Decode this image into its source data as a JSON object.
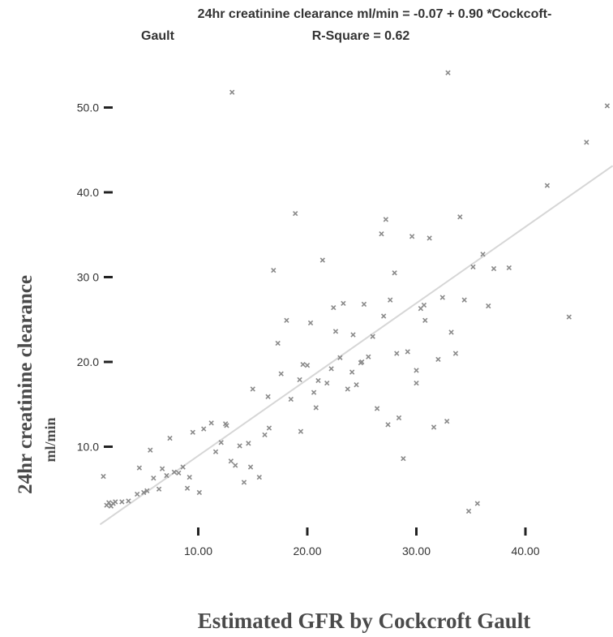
{
  "chart_data": {
    "type": "scatter",
    "title_line1": "24hr creatinine clearance ml/min = -0.07 + 0.90 *Cockcoft-",
    "title_line2_left": "Gault",
    "title_line2_right": "R-Square = 0.62",
    "xlabel": "Estimated GFR by Cockcroft Gault",
    "ylabel": "24hr creatinine clearance",
    "ylabel_unit": "ml/min",
    "xlim": [
      0,
      48
    ],
    "ylim": [
      0,
      56
    ],
    "x_ticks": [
      10,
      20,
      30,
      40
    ],
    "x_tick_labels": [
      "10.00",
      "20.00",
      "30.00",
      "40.00"
    ],
    "y_ticks": [
      10,
      20,
      30,
      40,
      50
    ],
    "y_tick_labels": [
      "10.0",
      "20.0",
      "30 0",
      "40.0",
      "50.0"
    ],
    "fit_line": {
      "intercept": -0.07,
      "slope": 0.9,
      "x_range": [
        1,
        48
      ]
    },
    "points": [
      [
        1.3,
        6.5
      ],
      [
        1.6,
        3.1
      ],
      [
        1.8,
        3.4
      ],
      [
        2.0,
        3.0
      ],
      [
        2.2,
        3.3
      ],
      [
        2.4,
        3.5
      ],
      [
        3.6,
        3.6
      ],
      [
        4.4,
        4.4
      ],
      [
        4.6,
        7.5
      ],
      [
        5.0,
        4.6
      ],
      [
        5.3,
        4.8
      ],
      [
        5.6,
        9.6
      ],
      [
        5.9,
        6.3
      ],
      [
        6.4,
        5.0
      ],
      [
        6.7,
        7.4
      ],
      [
        7.1,
        6.6
      ],
      [
        7.4,
        11.0
      ],
      [
        7.8,
        7.0
      ],
      [
        8.2,
        6.9
      ],
      [
        8.6,
        7.6
      ],
      [
        9.2,
        6.4
      ],
      [
        9.5,
        11.7
      ],
      [
        10.1,
        4.6
      ],
      [
        10.5,
        12.1
      ],
      [
        11.2,
        12.8
      ],
      [
        11.6,
        9.4
      ],
      [
        12.1,
        10.5
      ],
      [
        12.5,
        12.7
      ],
      [
        13.0,
        8.3
      ],
      [
        13.4,
        7.8
      ],
      [
        13.8,
        10.1
      ],
      [
        14.2,
        5.8
      ],
      [
        14.6,
        10.4
      ],
      [
        15.0,
        16.8
      ],
      [
        15.6,
        6.4
      ],
      [
        16.1,
        11.4
      ],
      [
        16.5,
        12.2
      ],
      [
        16.9,
        30.8
      ],
      [
        17.3,
        22.2
      ],
      [
        17.6,
        18.6
      ],
      [
        18.1,
        24.9
      ],
      [
        18.5,
        15.6
      ],
      [
        18.9,
        37.5
      ],
      [
        19.3,
        17.9
      ],
      [
        19.6,
        19.7
      ],
      [
        20.0,
        19.6
      ],
      [
        20.3,
        24.6
      ],
      [
        20.6,
        16.4
      ],
      [
        21.0,
        17.8
      ],
      [
        21.4,
        32.0
      ],
      [
        21.8,
        17.5
      ],
      [
        22.2,
        19.2
      ],
      [
        22.6,
        23.6
      ],
      [
        23.0,
        20.5
      ],
      [
        23.3,
        26.9
      ],
      [
        23.7,
        16.8
      ],
      [
        24.1,
        18.8
      ],
      [
        24.5,
        17.3
      ],
      [
        24.9,
        19.9
      ],
      [
        25.2,
        26.8
      ],
      [
        25.6,
        20.6
      ],
      [
        26.0,
        23.0
      ],
      [
        26.4,
        14.5
      ],
      [
        26.8,
        35.1
      ],
      [
        27.2,
        36.8
      ],
      [
        27.6,
        27.3
      ],
      [
        28.0,
        30.5
      ],
      [
        28.4,
        13.4
      ],
      [
        28.8,
        8.6
      ],
      [
        29.2,
        21.2
      ],
      [
        29.6,
        34.8
      ],
      [
        30.0,
        19.0
      ],
      [
        30.4,
        26.3
      ],
      [
        30.8,
        24.9
      ],
      [
        31.2,
        34.6
      ],
      [
        31.6,
        12.3
      ],
      [
        32.0,
        20.3
      ],
      [
        32.4,
        27.6
      ],
      [
        32.8,
        13.0
      ],
      [
        33.2,
        23.5
      ],
      [
        33.6,
        21.0
      ],
      [
        34.0,
        37.1
      ],
      [
        34.4,
        27.3
      ],
      [
        34.8,
        2.4
      ],
      [
        35.2,
        31.2
      ],
      [
        35.6,
        3.3
      ],
      [
        36.1,
        32.7
      ],
      [
        36.6,
        26.6
      ],
      [
        37.1,
        31.0
      ],
      [
        38.5,
        31.1
      ],
      [
        27.4,
        12.6
      ],
      [
        30.0,
        17.5
      ],
      [
        28.2,
        21.0
      ],
      [
        19.4,
        11.8
      ],
      [
        25.0,
        20.0
      ],
      [
        24.2,
        23.2
      ],
      [
        22.4,
        26.4
      ],
      [
        14.8,
        7.6
      ],
      [
        9.0,
        5.1
      ],
      [
        12.6,
        12.5
      ],
      [
        16.4,
        15.9
      ],
      [
        20.8,
        14.6
      ],
      [
        3.0,
        3.5
      ],
      [
        42.0,
        40.8
      ],
      [
        44.0,
        25.3
      ],
      [
        45.6,
        45.9
      ],
      [
        47.5,
        50.2
      ],
      [
        13.1,
        51.8
      ],
      [
        32.9,
        54.1
      ],
      [
        27.0,
        25.4
      ],
      [
        30.7,
        26.7
      ]
    ]
  }
}
